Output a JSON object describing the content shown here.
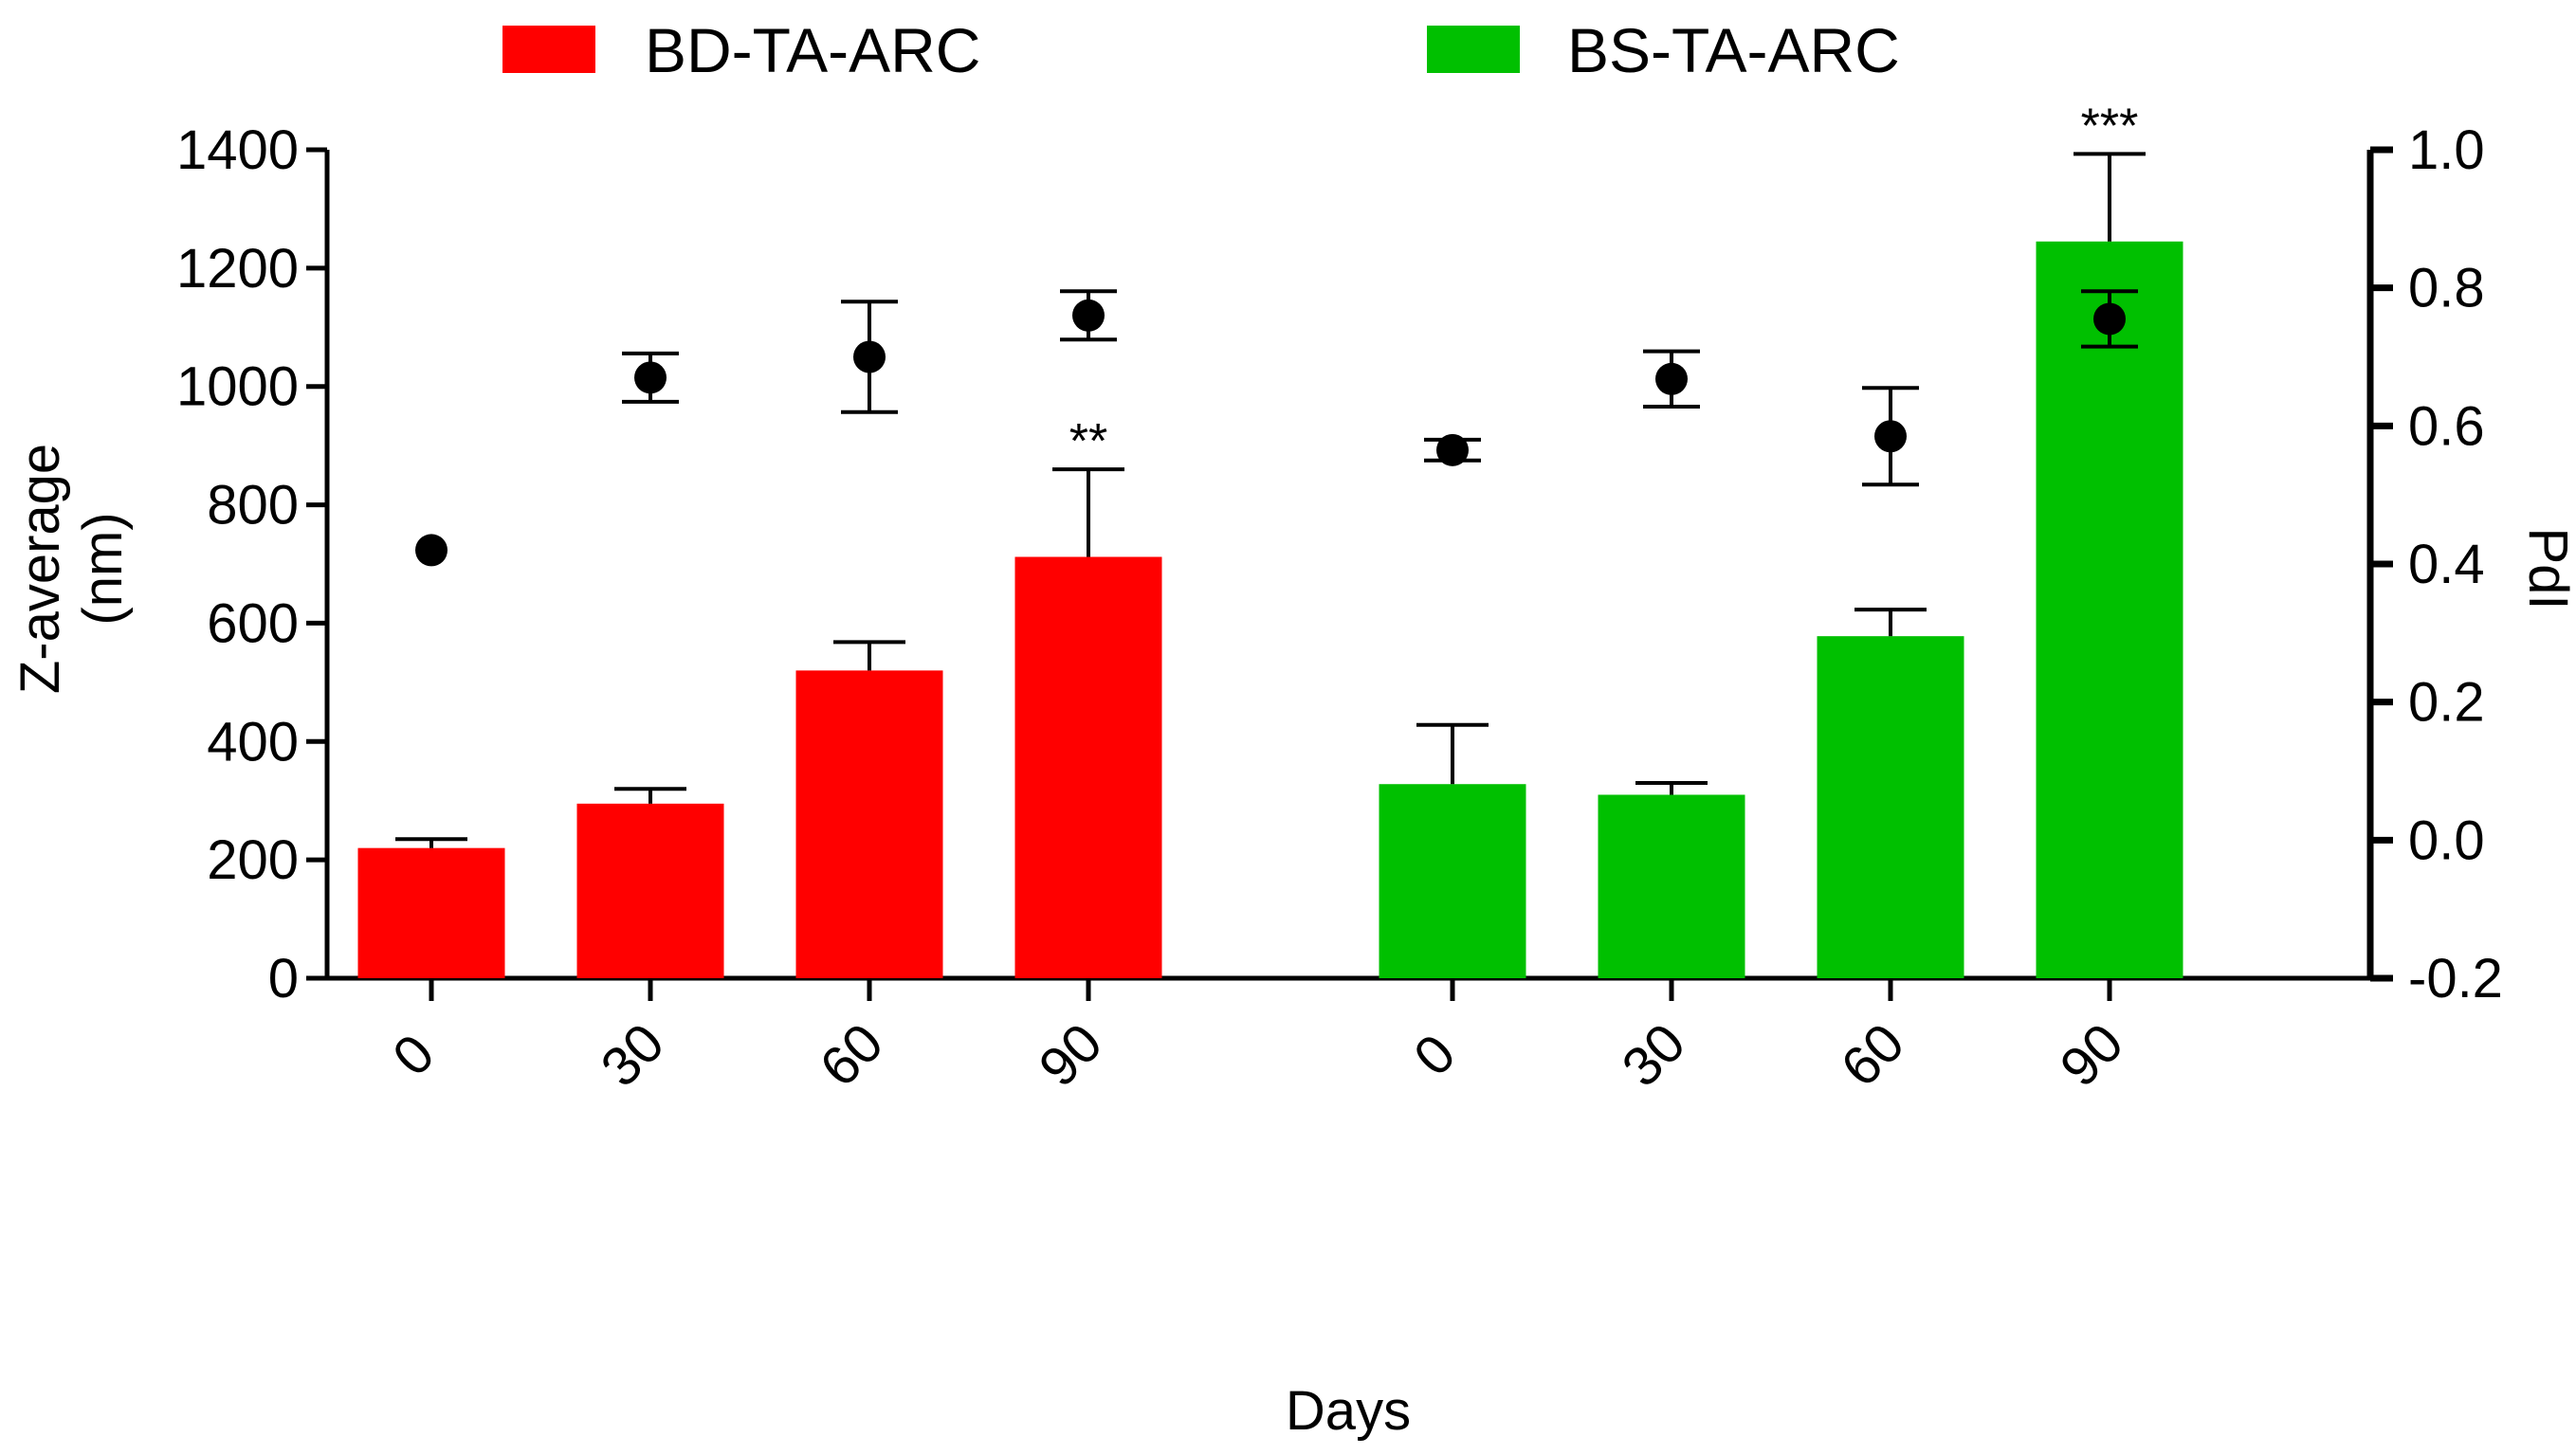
{
  "chart_data": {
    "type": "bar",
    "xlabel": "Days",
    "ylabel_left_line1": "Z-average",
    "ylabel_left_line2": "(nm)",
    "ylabel_right": "PdI",
    "ylim_left": [
      0,
      1400
    ],
    "ylim_right": [
      -0.2,
      1.0
    ],
    "left_ticks": [
      "0",
      "200",
      "400",
      "600",
      "800",
      "1000",
      "1200",
      "1400"
    ],
    "right_ticks": [
      "-0.2",
      "0.0",
      "0.2",
      "0.4",
      "0.6",
      "0.8",
      "1.0"
    ],
    "legend": {
      "placement": "top"
    },
    "series": [
      {
        "name": "BD-TA-ARC",
        "color": "#ff0000",
        "categories": [
          "0",
          "30",
          "60",
          "90"
        ],
        "zavg": [
          220,
          295,
          520,
          712
        ],
        "zavg_err": [
          15,
          25,
          48,
          148
        ],
        "pdi": [
          0.42,
          0.67,
          0.7,
          0.76
        ],
        "pdi_err": [
          0.0,
          0.035,
          0.08,
          0.035
        ],
        "significance": [
          "",
          "",
          "",
          "**"
        ]
      },
      {
        "name": "BS-TA-ARC",
        "color": "#00c000",
        "categories": [
          "0",
          "30",
          "60",
          "90"
        ],
        "zavg": [
          328,
          310,
          578,
          1245
        ],
        "zavg_err": [
          100,
          20,
          45,
          148
        ],
        "pdi": [
          0.565,
          0.668,
          0.585,
          0.755
        ],
        "pdi_err": [
          0.015,
          0.04,
          0.07,
          0.04
        ],
        "significance": [
          "",
          "",
          "",
          "***"
        ]
      }
    ]
  }
}
